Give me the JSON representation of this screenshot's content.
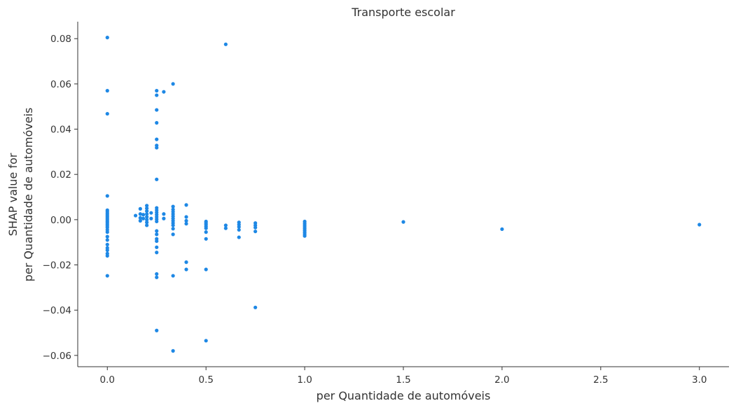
{
  "chart_data": {
    "type": "scatter",
    "title": "Transporte escolar",
    "xlabel": "per Quantidade de automóveis",
    "ylabel_lines": [
      "SHAP value for",
      "per Quantidade de automóveis"
    ],
    "xlim": [
      -0.15,
      3.15
    ],
    "ylim": [
      -0.065,
      0.0875
    ],
    "x_ticks": [
      0.0,
      0.5,
      1.0,
      1.5,
      2.0,
      2.5,
      3.0
    ],
    "x_tick_labels": [
      "0.0",
      "0.5",
      "1.0",
      "1.5",
      "2.0",
      "2.5",
      "3.0"
    ],
    "y_ticks": [
      -0.06,
      -0.04,
      -0.02,
      0.0,
      0.02,
      0.04,
      0.06,
      0.08
    ],
    "y_tick_labels": [
      "−0.06",
      "−0.04",
      "−0.02",
      "0.00",
      "0.02",
      "0.04",
      "0.06",
      "0.08"
    ],
    "grid": false,
    "point_color": "#1e88e5",
    "points": [
      [
        0.0,
        0.0805
      ],
      [
        0.0,
        0.057
      ],
      [
        0.0,
        0.0468
      ],
      [
        0.0,
        0.0105
      ],
      [
        0.0,
        0.0042
      ],
      [
        0.0,
        0.0035
      ],
      [
        0.0,
        0.0028
      ],
      [
        0.0,
        0.0021
      ],
      [
        0.0,
        0.0014
      ],
      [
        0.0,
        0.0007
      ],
      [
        0.0,
        0.0
      ],
      [
        0.0,
        -0.0007
      ],
      [
        0.0,
        -0.0014
      ],
      [
        0.0,
        -0.0021
      ],
      [
        0.0,
        -0.0028
      ],
      [
        0.0,
        -0.0035
      ],
      [
        0.0,
        -0.0045
      ],
      [
        0.0,
        -0.0055
      ],
      [
        0.0,
        -0.0075
      ],
      [
        0.0,
        -0.009
      ],
      [
        0.0,
        -0.011
      ],
      [
        0.0,
        -0.0125
      ],
      [
        0.0,
        -0.0135
      ],
      [
        0.0,
        -0.015
      ],
      [
        0.0,
        -0.016
      ],
      [
        0.0,
        -0.0248
      ],
      [
        0.143,
        0.0018
      ],
      [
        0.167,
        0.0048
      ],
      [
        0.167,
        0.0025
      ],
      [
        0.167,
        0.0008
      ],
      [
        0.167,
        -0.0005
      ],
      [
        0.182,
        0.0022
      ],
      [
        0.182,
        0.0005
      ],
      [
        0.2,
        0.0062
      ],
      [
        0.2,
        0.005
      ],
      [
        0.2,
        0.0038
      ],
      [
        0.2,
        0.0025
      ],
      [
        0.2,
        0.0012
      ],
      [
        0.2,
        0.0
      ],
      [
        0.2,
        -0.0012
      ],
      [
        0.2,
        -0.0025
      ],
      [
        0.222,
        0.003
      ],
      [
        0.222,
        0.0005
      ],
      [
        0.25,
        0.057
      ],
      [
        0.25,
        0.055
      ],
      [
        0.25,
        0.0485
      ],
      [
        0.25,
        0.0428
      ],
      [
        0.25,
        0.0355
      ],
      [
        0.25,
        0.0328
      ],
      [
        0.25,
        0.0318
      ],
      [
        0.25,
        0.0178
      ],
      [
        0.25,
        0.0052
      ],
      [
        0.25,
        0.0042
      ],
      [
        0.25,
        0.0032
      ],
      [
        0.25,
        0.0022
      ],
      [
        0.25,
        0.0012
      ],
      [
        0.25,
        0.0002
      ],
      [
        0.25,
        -0.0008
      ],
      [
        0.25,
        -0.005
      ],
      [
        0.25,
        -0.0065
      ],
      [
        0.25,
        -0.0085
      ],
      [
        0.25,
        -0.0095
      ],
      [
        0.25,
        -0.0122
      ],
      [
        0.25,
        -0.0145
      ],
      [
        0.25,
        -0.024
      ],
      [
        0.25,
        -0.0255
      ],
      [
        0.25,
        -0.049
      ],
      [
        0.286,
        0.0565
      ],
      [
        0.286,
        0.0025
      ],
      [
        0.286,
        0.0005
      ],
      [
        0.333,
        0.06
      ],
      [
        0.333,
        0.0058
      ],
      [
        0.333,
        0.0045
      ],
      [
        0.333,
        0.0035
      ],
      [
        0.333,
        0.0025
      ],
      [
        0.333,
        0.0015
      ],
      [
        0.333,
        0.0005
      ],
      [
        0.333,
        -0.0005
      ],
      [
        0.333,
        -0.0015
      ],
      [
        0.333,
        -0.0025
      ],
      [
        0.333,
        -0.004
      ],
      [
        0.333,
        -0.0065
      ],
      [
        0.333,
        -0.0248
      ],
      [
        0.333,
        -0.058
      ],
      [
        0.4,
        0.0065
      ],
      [
        0.4,
        0.0012
      ],
      [
        0.4,
        -0.0005
      ],
      [
        0.4,
        -0.0018
      ],
      [
        0.4,
        -0.0188
      ],
      [
        0.4,
        -0.022
      ],
      [
        0.5,
        -0.0008
      ],
      [
        0.5,
        -0.0015
      ],
      [
        0.5,
        -0.0022
      ],
      [
        0.5,
        -0.003
      ],
      [
        0.5,
        -0.0038
      ],
      [
        0.5,
        -0.0055
      ],
      [
        0.5,
        -0.0085
      ],
      [
        0.5,
        -0.022
      ],
      [
        0.5,
        -0.0535
      ],
      [
        0.6,
        0.0775
      ],
      [
        0.6,
        -0.0025
      ],
      [
        0.6,
        -0.0038
      ],
      [
        0.667,
        -0.0012
      ],
      [
        0.667,
        -0.0022
      ],
      [
        0.667,
        -0.0032
      ],
      [
        0.667,
        -0.0045
      ],
      [
        0.667,
        -0.0078
      ],
      [
        0.75,
        -0.0015
      ],
      [
        0.75,
        -0.0025
      ],
      [
        0.75,
        -0.0035
      ],
      [
        0.75,
        -0.0052
      ],
      [
        0.75,
        -0.0388
      ],
      [
        1.0,
        -0.0008
      ],
      [
        1.0,
        -0.0016
      ],
      [
        1.0,
        -0.0024
      ],
      [
        1.0,
        -0.0032
      ],
      [
        1.0,
        -0.004
      ],
      [
        1.0,
        -0.0048
      ],
      [
        1.0,
        -0.0056
      ],
      [
        1.0,
        -0.0064
      ],
      [
        1.0,
        -0.0072
      ],
      [
        1.5,
        -0.001
      ],
      [
        2.0,
        -0.0042
      ],
      [
        3.0,
        -0.0022
      ]
    ]
  }
}
